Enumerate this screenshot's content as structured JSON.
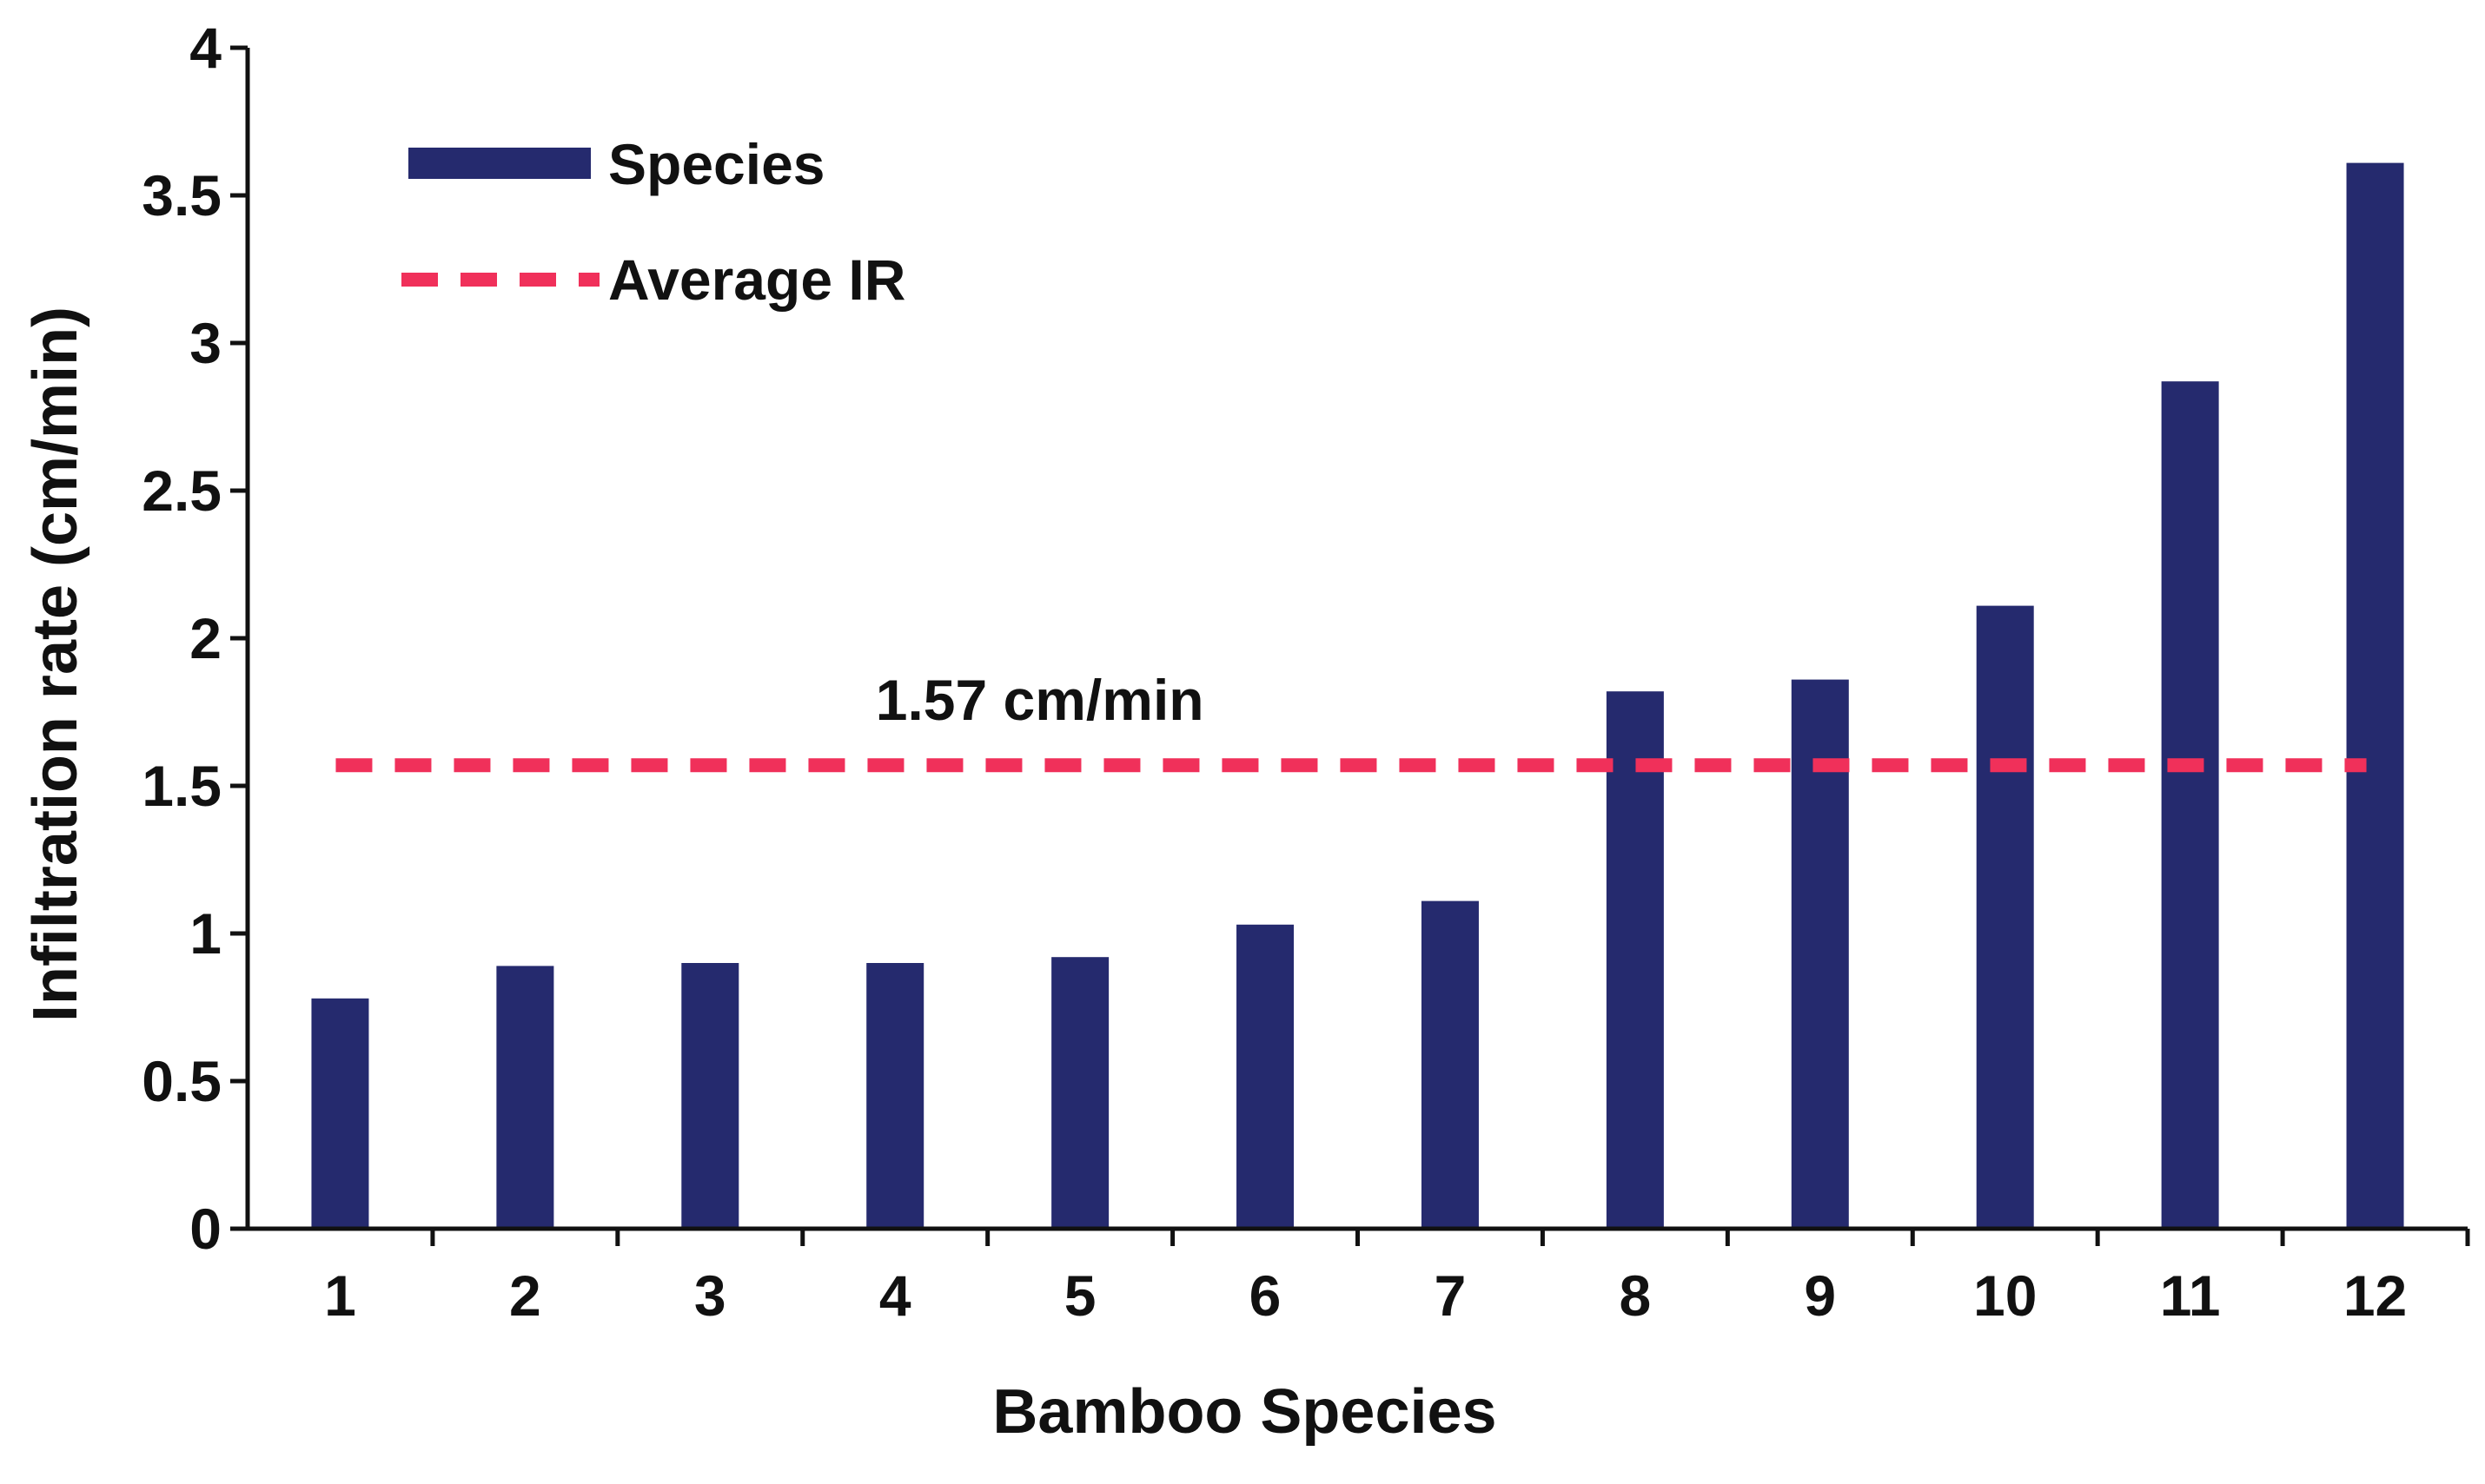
{
  "chart_data": {
    "type": "bar",
    "xlabel": "Bamboo Species",
    "ylabel": "Infiltration  rate (cm/min)",
    "categories": [
      "1",
      "2",
      "3",
      "4",
      "5",
      "6",
      "7",
      "8",
      "9",
      "10",
      "11",
      "12"
    ],
    "series": [
      {
        "name": "Species",
        "color": "#252a6e",
        "values": [
          0.78,
          0.89,
          0.9,
          0.9,
          0.92,
          1.03,
          1.11,
          1.82,
          1.86,
          2.11,
          2.87,
          3.61
        ]
      }
    ],
    "reference_line": {
      "name": "Average IR",
      "value": 1.57,
      "color": "#f0305a",
      "style": "dashed",
      "label": "1.57 cm/min"
    },
    "ylim": [
      0,
      4
    ],
    "yticks": [
      0,
      0.5,
      1,
      1.5,
      2,
      2.5,
      3,
      3.5,
      4
    ],
    "ytick_labels": [
      "0",
      "0.5",
      "1",
      "1.5",
      "2",
      "2.5",
      "3",
      "3.5",
      "4"
    ],
    "grid": false,
    "legend_position": "top-left"
  }
}
